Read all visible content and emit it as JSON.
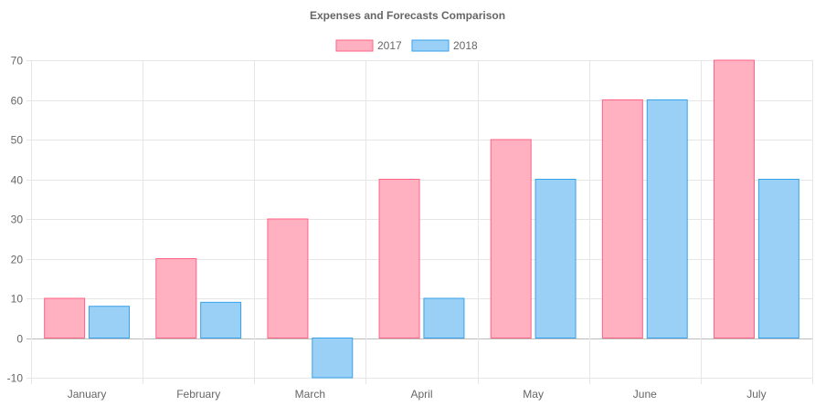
{
  "chart_data": {
    "type": "bar",
    "title": "Expenses and Forecasts Comparison",
    "categories": [
      "January",
      "February",
      "March",
      "April",
      "May",
      "June",
      "July"
    ],
    "series": [
      {
        "name": "2017",
        "values": [
          10,
          20,
          30,
          40,
          50,
          60,
          70
        ],
        "fill": "#ffb1c1",
        "stroke": "#ff6384"
      },
      {
        "name": "2018",
        "values": [
          8,
          9,
          -10,
          10,
          40,
          60,
          40
        ],
        "fill": "#9ad0f5",
        "stroke": "#36a2eb"
      }
    ],
    "ylim": [
      -10,
      70
    ],
    "yticks": [
      -10,
      0,
      10,
      20,
      30,
      40,
      50,
      60,
      70
    ],
    "grid": true,
    "legend_position": "top"
  }
}
